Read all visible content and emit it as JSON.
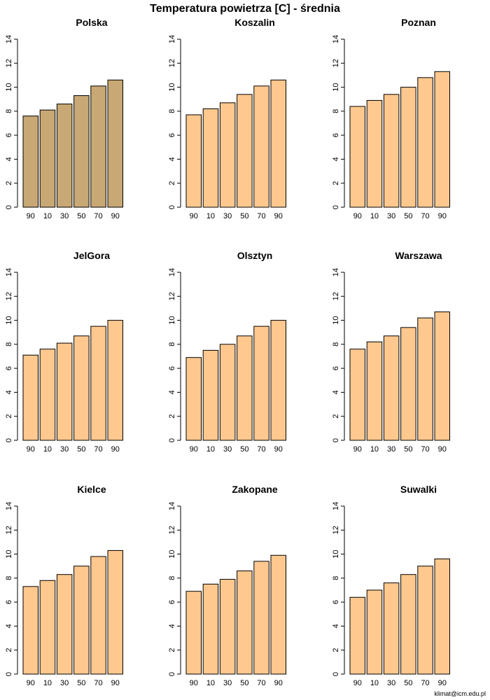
{
  "title": "Temperatura powietrza [C] - średnia",
  "credit": "klimat@icm.edu.pl",
  "colors": {
    "highlight_bar": "#c8a874",
    "default_bar": "#ffc88e",
    "stroke": "#000000"
  },
  "chart_data": [
    {
      "type": "bar",
      "title": "Polska",
      "highlight": true,
      "categories": [
        "90",
        "10",
        "30",
        "50",
        "70",
        "90"
      ],
      "values": [
        7.6,
        8.1,
        8.6,
        9.3,
        10.1,
        10.6
      ],
      "yticks": [
        "0",
        "2",
        "4",
        "6",
        "8",
        "10",
        "12",
        "14"
      ],
      "ylim": [
        0,
        14
      ],
      "xlabel": "",
      "ylabel": ""
    },
    {
      "type": "bar",
      "title": "Koszalin",
      "highlight": false,
      "categories": [
        "90",
        "10",
        "30",
        "50",
        "70",
        "90"
      ],
      "values": [
        7.7,
        8.2,
        8.7,
        9.4,
        10.1,
        10.6
      ],
      "yticks": [
        "0",
        "2",
        "4",
        "6",
        "8",
        "10",
        "12",
        "14"
      ],
      "ylim": [
        0,
        14
      ],
      "xlabel": "",
      "ylabel": ""
    },
    {
      "type": "bar",
      "title": "Poznan",
      "highlight": false,
      "categories": [
        "90",
        "10",
        "30",
        "50",
        "70",
        "90"
      ],
      "values": [
        8.4,
        8.9,
        9.4,
        10.0,
        10.8,
        11.3
      ],
      "yticks": [
        "0",
        "2",
        "4",
        "6",
        "8",
        "10",
        "12",
        "14"
      ],
      "ylim": [
        0,
        14
      ],
      "xlabel": "",
      "ylabel": ""
    },
    {
      "type": "bar",
      "title": "JelGora",
      "highlight": false,
      "categories": [
        "90",
        "10",
        "30",
        "50",
        "70",
        "90"
      ],
      "values": [
        7.1,
        7.6,
        8.1,
        8.7,
        9.5,
        10.0
      ],
      "yticks": [
        "0",
        "2",
        "4",
        "6",
        "8",
        "10",
        "12",
        "14"
      ],
      "ylim": [
        0,
        14
      ],
      "xlabel": "",
      "ylabel": ""
    },
    {
      "type": "bar",
      "title": "Olsztyn",
      "highlight": false,
      "categories": [
        "90",
        "10",
        "30",
        "50",
        "70",
        "90"
      ],
      "values": [
        6.9,
        7.5,
        8.0,
        8.7,
        9.5,
        10.0
      ],
      "yticks": [
        "0",
        "2",
        "4",
        "6",
        "8",
        "10",
        "12",
        "14"
      ],
      "ylim": [
        0,
        14
      ],
      "xlabel": "",
      "ylabel": ""
    },
    {
      "type": "bar",
      "title": "Warszawa",
      "highlight": false,
      "categories": [
        "90",
        "10",
        "30",
        "50",
        "70",
        "90"
      ],
      "values": [
        7.6,
        8.2,
        8.7,
        9.4,
        10.2,
        10.7
      ],
      "yticks": [
        "0",
        "2",
        "4",
        "6",
        "8",
        "10",
        "12",
        "14"
      ],
      "ylim": [
        0,
        14
      ],
      "xlabel": "",
      "ylabel": ""
    },
    {
      "type": "bar",
      "title": "Kielce",
      "highlight": false,
      "categories": [
        "90",
        "10",
        "30",
        "50",
        "70",
        "90"
      ],
      "values": [
        7.3,
        7.8,
        8.3,
        9.0,
        9.8,
        10.3
      ],
      "yticks": [
        "0",
        "2",
        "4",
        "6",
        "8",
        "10",
        "12",
        "14"
      ],
      "ylim": [
        0,
        14
      ],
      "xlabel": "",
      "ylabel": ""
    },
    {
      "type": "bar",
      "title": "Zakopane",
      "highlight": false,
      "categories": [
        "90",
        "10",
        "30",
        "50",
        "70",
        "90"
      ],
      "values": [
        6.9,
        7.5,
        7.9,
        8.6,
        9.4,
        9.9
      ],
      "yticks": [
        "0",
        "2",
        "4",
        "6",
        "8",
        "10",
        "12",
        "14"
      ],
      "ylim": [
        0,
        14
      ],
      "xlabel": "",
      "ylabel": ""
    },
    {
      "type": "bar",
      "title": "Suwalki",
      "highlight": false,
      "categories": [
        "90",
        "10",
        "30",
        "50",
        "70",
        "90"
      ],
      "values": [
        6.4,
        7.0,
        7.6,
        8.3,
        9.0,
        9.6
      ],
      "yticks": [
        "0",
        "2",
        "4",
        "6",
        "8",
        "10",
        "12",
        "14"
      ],
      "ylim": [
        0,
        14
      ],
      "xlabel": "",
      "ylabel": ""
    }
  ]
}
